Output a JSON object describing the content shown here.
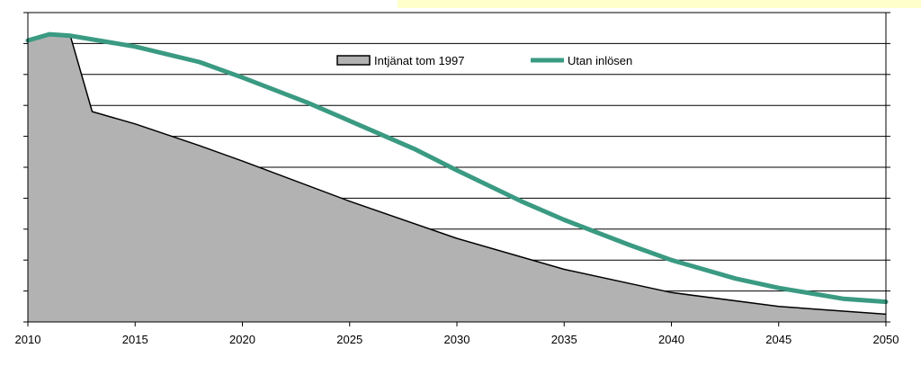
{
  "chart_data": {
    "type": "area",
    "title": "",
    "xlabel": "",
    "ylabel": "",
    "xlim": [
      2010,
      2050
    ],
    "ylim": [
      0,
      100
    ],
    "x_ticks": [
      "2010",
      "2015",
      "2020",
      "2025",
      "2030",
      "2035",
      "2040",
      "2045",
      "2050"
    ],
    "grid": "horizontal",
    "legend_position": "top-center",
    "series": [
      {
        "name": "Intjänat tom 1997",
        "kind": "area",
        "color": "#b2b2b2",
        "x": [
          2010,
          2011,
          2012,
          2013,
          2015,
          2018,
          2020,
          2025,
          2030,
          2035,
          2040,
          2045,
          2050
        ],
        "y": [
          91,
          93,
          92,
          68,
          64,
          57,
          52,
          39,
          27,
          17,
          9.5,
          5,
          2.5
        ]
      },
      {
        "name": "Utan inlösen",
        "kind": "line",
        "color": "#3a9a82",
        "x": [
          2010,
          2011,
          2012,
          2015,
          2018,
          2020,
          2023,
          2025,
          2028,
          2030,
          2033,
          2035,
          2038,
          2040,
          2043,
          2045,
          2048,
          2050
        ],
        "y": [
          91,
          93,
          92.5,
          89,
          84,
          79,
          71,
          65,
          56,
          49,
          39,
          33,
          25,
          20,
          14,
          11,
          7.5,
          6.5
        ]
      }
    ]
  }
}
